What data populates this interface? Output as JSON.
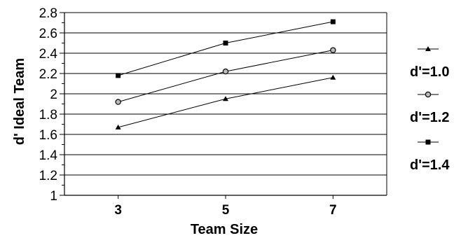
{
  "chart_data": {
    "type": "line",
    "title": "",
    "xlabel": "Team Size",
    "ylabel": "d' Ideal Team",
    "categories": [
      "3",
      "5",
      "7"
    ],
    "x": [
      3,
      5,
      7
    ],
    "xlim": [
      2,
      8
    ],
    "ylim": [
      1,
      2.8
    ],
    "yticks": [
      "1",
      "1.2",
      "1.4",
      "1.6",
      "1.8",
      "2",
      "2.2",
      "2.4",
      "2.6",
      "2.8"
    ],
    "grid": "horizontal",
    "legend": "right",
    "series": [
      {
        "name": "d'=1.0",
        "marker": "triangle",
        "values": [
          1.67,
          1.95,
          2.16
        ]
      },
      {
        "name": "d'=1.2",
        "marker": "circle",
        "values": [
          1.92,
          2.22,
          2.43
        ]
      },
      {
        "name": "d'=1.4",
        "marker": "square",
        "values": [
          2.18,
          2.5,
          2.71
        ]
      }
    ],
    "colors": {
      "line": "#000000",
      "grid": "#000000",
      "background": "#ffffff"
    }
  }
}
